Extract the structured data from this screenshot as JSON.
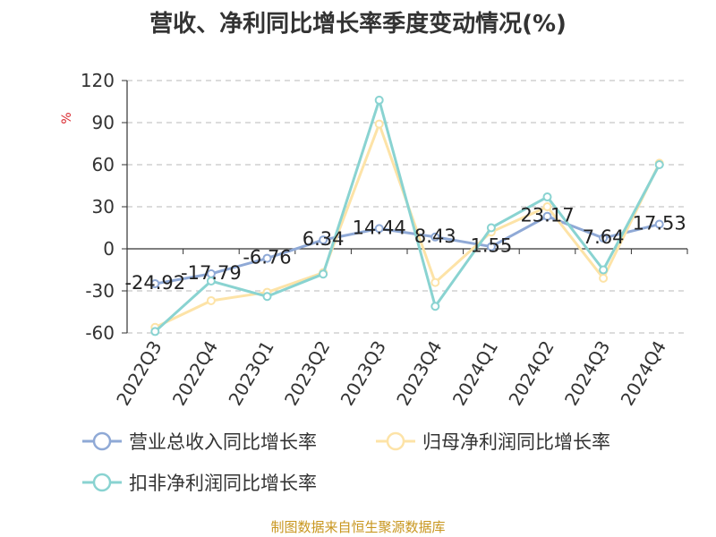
{
  "title": "营收、净利同比增长率季度变动情况(%)",
  "source_note": "制图数据来自恒生聚源数据库",
  "chart_data": {
    "type": "line",
    "title": "营收、净利同比增长率季度变动情况(%)",
    "xlabel": "",
    "ylabel": "%",
    "categories": [
      "2022Q3",
      "2022Q4",
      "2023Q1",
      "2023Q2",
      "2023Q3",
      "2023Q4",
      "2024Q1",
      "2024Q2",
      "2024Q3",
      "2024Q4"
    ],
    "ylim": [
      -60,
      120
    ],
    "yticks": [
      -60,
      -30,
      0,
      30,
      60,
      90,
      120
    ],
    "ytick_labels": [
      "-60",
      "-30",
      "0",
      "30",
      "60",
      "90",
      "120"
    ],
    "grid": true,
    "legend_position": "bottom",
    "series": [
      {
        "name": "营业总收入同比增长率",
        "color": "#8fa9d6",
        "values": [
          -24.92,
          -17.79,
          -6.76,
          6.34,
          14.44,
          8.43,
          1.55,
          23.17,
          7.64,
          17.53
        ],
        "data_labels": [
          "-24.92",
          "-17.79",
          "-6.76",
          "6.34",
          "14.44",
          "8.43",
          "1.55",
          "23.17",
          "7.64",
          "17.53"
        ]
      },
      {
        "name": "归母净利润同比增长率",
        "color": "#fde3a7",
        "values": [
          -56,
          -37,
          -31,
          -17,
          89,
          -24,
          12,
          30,
          -21,
          61
        ]
      },
      {
        "name": "扣非净利润同比增长率",
        "color": "#89d3d1",
        "values": [
          -59,
          -23,
          -34,
          -18,
          106,
          -41,
          15,
          37,
          -15,
          60
        ]
      }
    ]
  }
}
